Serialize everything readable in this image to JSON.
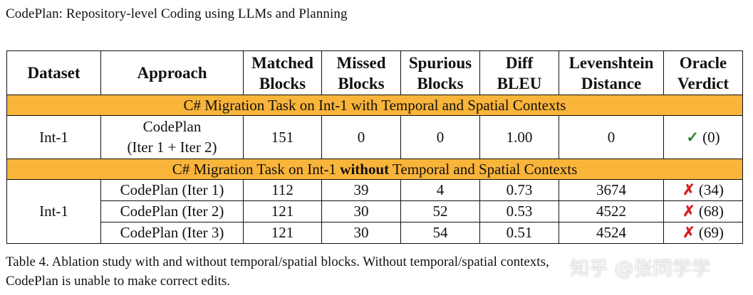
{
  "header": "CodePlan: Repository-level Coding using LLMs and Planning",
  "columns": [
    [
      "Dataset"
    ],
    [
      "Approach"
    ],
    [
      "Matched",
      "Blocks"
    ],
    [
      "Missed",
      "Blocks"
    ],
    [
      "Spurious",
      "Blocks"
    ],
    [
      "Diff",
      "BLEU"
    ],
    [
      "Levenshtein",
      "Distance"
    ],
    [
      "Oracle",
      "Verdict"
    ]
  ],
  "section1": {
    "title": "C# Migration Task on Int-1 with Temporal and Spatial Contexts",
    "dataset": "Int-1",
    "rows": [
      {
        "approach_line1": "CodePlan",
        "approach_line2": "(Iter 1 + Iter 2)",
        "matched": "151",
        "missed": "0",
        "spurious": "0",
        "bleu": "1.00",
        "lev": "0",
        "mark": "✓",
        "count": "(0)"
      }
    ]
  },
  "section2": {
    "title_pre": "C# Migration Task on Int-1 ",
    "title_bold": "without",
    "title_post": " Temporal and Spatial Contexts",
    "dataset": "Int-1",
    "rows": [
      {
        "approach": "CodePlan (Iter 1)",
        "matched": "112",
        "missed": "39",
        "spurious": "4",
        "bleu": "0.73",
        "lev": "3674",
        "mark": "✗",
        "count": "(34)"
      },
      {
        "approach": "CodePlan (Iter 2)",
        "matched": "121",
        "missed": "30",
        "spurious": "52",
        "bleu": "0.53",
        "lev": "4522",
        "mark": "✗",
        "count": "(68)"
      },
      {
        "approach": "CodePlan (Iter 3)",
        "matched": "121",
        "missed": "30",
        "spurious": "54",
        "bleu": "0.51",
        "lev": "4524",
        "mark": "✗",
        "count": "(69)"
      }
    ]
  },
  "caption": {
    "line1": "Table 4. Ablation study with and without temporal/spatial blocks. Without temporal/spatial contexts,",
    "line2": "CodePlan is unable to make correct edits."
  },
  "watermark": "知乎 @张同学学",
  "colors": {
    "section_bg": "#f9b43a",
    "check": "#1f8a2b",
    "cross": "#d61f1f"
  }
}
